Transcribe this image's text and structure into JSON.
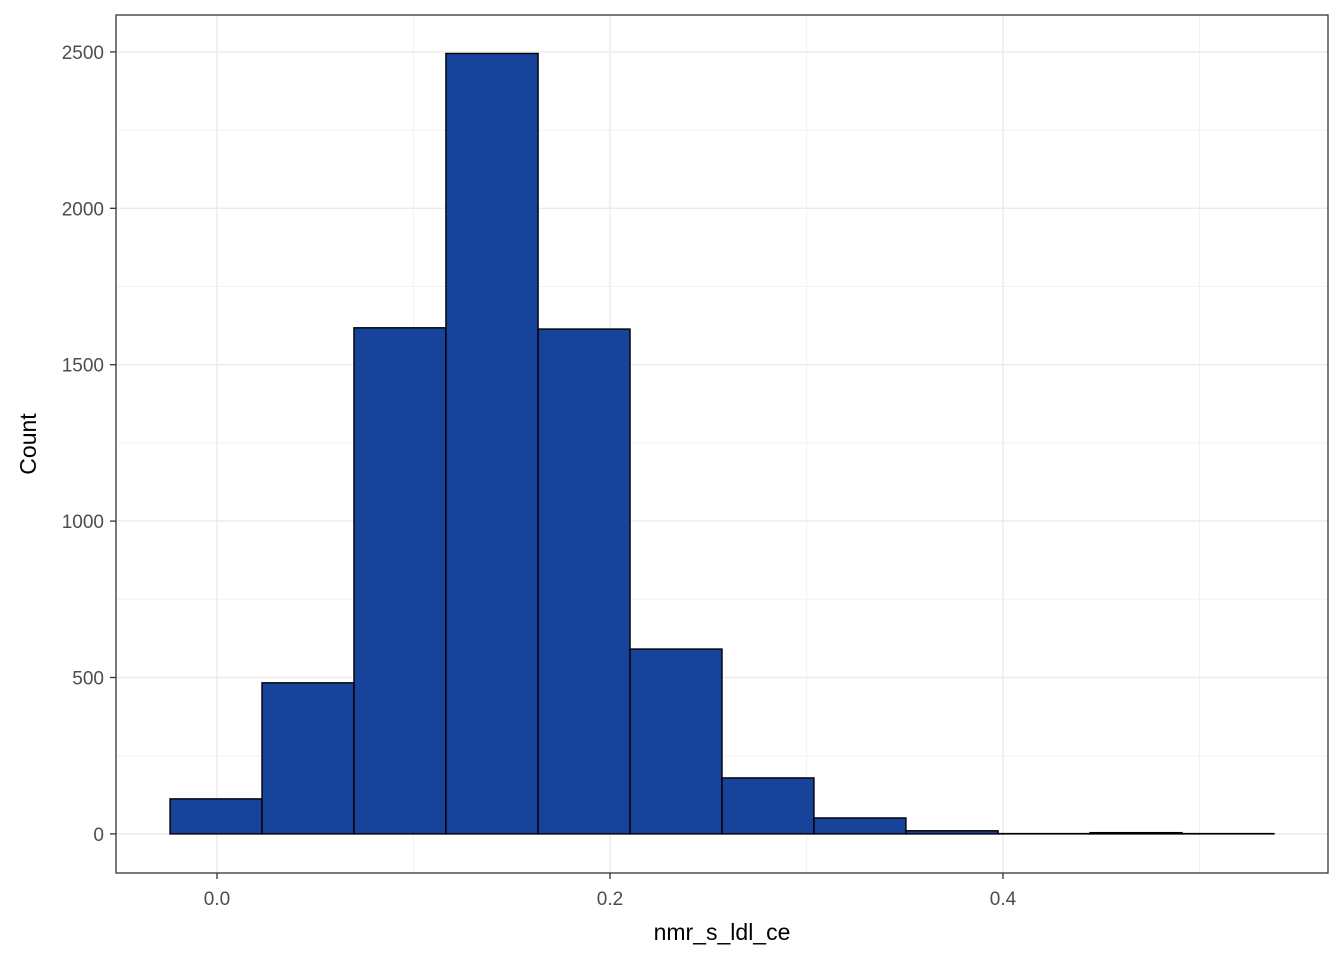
{
  "chart_data": {
    "type": "histogram",
    "x_label": "nmr_s_ldl_ce",
    "y_label": "Count",
    "bins": [
      -0.0239,
      0.0229,
      0.0697,
      0.1165,
      0.1634,
      0.2102,
      0.257,
      0.3038,
      0.3506,
      0.3975,
      0.4443,
      0.4911,
      0.5379
    ],
    "values": [
      112,
      483,
      1618,
      2495,
      1614,
      591,
      179,
      51,
      10,
      1,
      4,
      1
    ],
    "color": "#18439a",
    "xlim": [
      -0.0514,
      0.5654
    ],
    "ylim": [
      -125,
      2618
    ],
    "xticks": [
      {
        "value": 0,
        "label": "0.0"
      },
      0.2,
      0.4
    ],
    "yticks": [
      0,
      500,
      1000,
      1500,
      2000,
      2500
    ],
    "grid": true
  }
}
